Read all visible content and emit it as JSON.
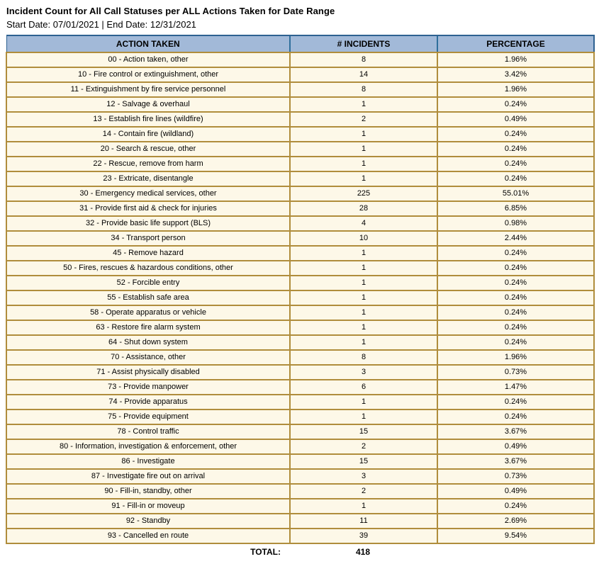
{
  "title": "Incident Count for All Call Statuses per ALL Actions Taken for Date Range",
  "subtitle": "Start Date: 07/01/2021 | End Date: 12/31/2021",
  "colors": {
    "header-bg": "#a2b9d8",
    "header-border": "#2d6191",
    "header-divider": "#2f6f9c",
    "gold": "#b08d3c",
    "row-bg": "#fdf8e8"
  },
  "table": {
    "columns": [
      "ACTION TAKEN",
      "# INCIDENTS",
      "PERCENTAGE"
    ],
    "rows": [
      {
        "action": "00 - Action taken, other",
        "incidents": "8",
        "percentage": "1.96%"
      },
      {
        "action": "10 - Fire control or extinguishment, other",
        "incidents": "14",
        "percentage": "3.42%"
      },
      {
        "action": "11 - Extinguishment by fire service personnel",
        "incidents": "8",
        "percentage": "1.96%"
      },
      {
        "action": "12 - Salvage & overhaul",
        "incidents": "1",
        "percentage": "0.24%"
      },
      {
        "action": "13 - Establish fire lines (wildfire)",
        "incidents": "2",
        "percentage": "0.49%"
      },
      {
        "action": "14 - Contain fire (wildland)",
        "incidents": "1",
        "percentage": "0.24%"
      },
      {
        "action": "20 - Search & rescue, other",
        "incidents": "1",
        "percentage": "0.24%"
      },
      {
        "action": "22 - Rescue, remove from harm",
        "incidents": "1",
        "percentage": "0.24%"
      },
      {
        "action": "23 - Extricate, disentangle",
        "incidents": "1",
        "percentage": "0.24%"
      },
      {
        "action": "30 - Emergency medical services, other",
        "incidents": "225",
        "percentage": "55.01%"
      },
      {
        "action": "31 - Provide first aid & check for injuries",
        "incidents": "28",
        "percentage": "6.85%"
      },
      {
        "action": "32 - Provide basic life support (BLS)",
        "incidents": "4",
        "percentage": "0.98%"
      },
      {
        "action": "34 - Transport person",
        "incidents": "10",
        "percentage": "2.44%"
      },
      {
        "action": "45 - Remove hazard",
        "incidents": "1",
        "percentage": "0.24%"
      },
      {
        "action": "50 - Fires, rescues & hazardous conditions, other",
        "incidents": "1",
        "percentage": "0.24%"
      },
      {
        "action": "52 - Forcible entry",
        "incidents": "1",
        "percentage": "0.24%"
      },
      {
        "action": "55 - Establish safe area",
        "incidents": "1",
        "percentage": "0.24%"
      },
      {
        "action": "58 - Operate apparatus or vehicle",
        "incidents": "1",
        "percentage": "0.24%"
      },
      {
        "action": "63 - Restore fire alarm system",
        "incidents": "1",
        "percentage": "0.24%"
      },
      {
        "action": "64 - Shut down system",
        "incidents": "1",
        "percentage": "0.24%"
      },
      {
        "action": "70 - Assistance, other",
        "incidents": "8",
        "percentage": "1.96%"
      },
      {
        "action": "71 - Assist physically disabled",
        "incidents": "3",
        "percentage": "0.73%"
      },
      {
        "action": "73 - Provide manpower",
        "incidents": "6",
        "percentage": "1.47%"
      },
      {
        "action": "74 - Provide apparatus",
        "incidents": "1",
        "percentage": "0.24%"
      },
      {
        "action": "75 - Provide equipment",
        "incidents": "1",
        "percentage": "0.24%"
      },
      {
        "action": "78 - Control traffic",
        "incidents": "15",
        "percentage": "3.67%"
      },
      {
        "action": "80 - Information, investigation & enforcement, other",
        "incidents": "2",
        "percentage": "0.49%"
      },
      {
        "action": "86 - Investigate",
        "incidents": "15",
        "percentage": "3.67%"
      },
      {
        "action": "87 - Investigate fire out on arrival",
        "incidents": "3",
        "percentage": "0.73%"
      },
      {
        "action": "90 - Fill-in, standby, other",
        "incidents": "2",
        "percentage": "0.49%"
      },
      {
        "action": "91 - Fill-in or moveup",
        "incidents": "1",
        "percentage": "0.24%"
      },
      {
        "action": "92 - Standby",
        "incidents": "11",
        "percentage": "2.69%"
      },
      {
        "action": "93 - Cancelled en route",
        "incidents": "39",
        "percentage": "9.54%"
      }
    ],
    "total_label": "TOTAL:",
    "total_value": "418"
  }
}
